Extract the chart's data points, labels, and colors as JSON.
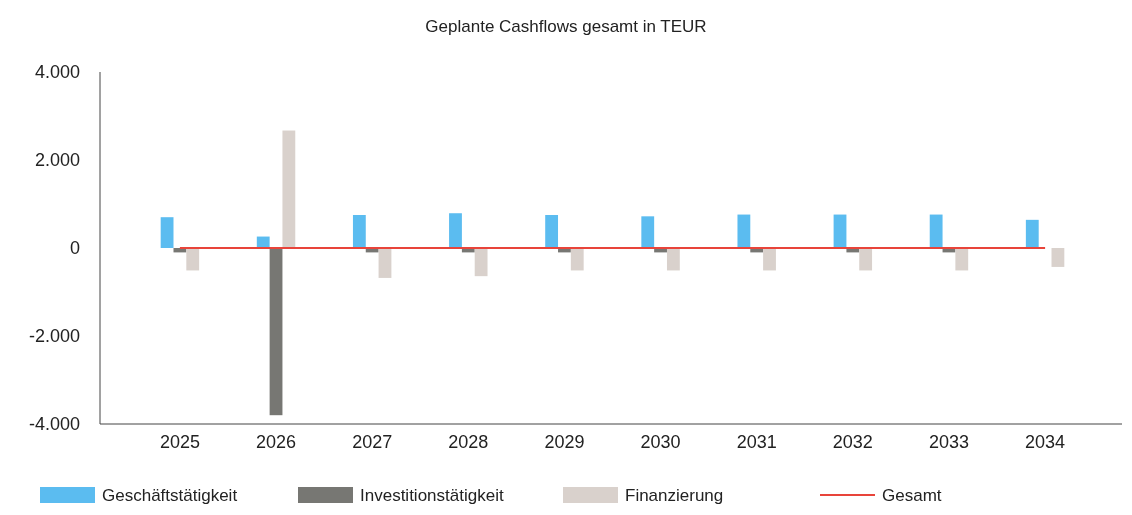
{
  "chart_data": {
    "type": "bar",
    "title": "Geplante Cashflows gesamt in TEUR",
    "categories": [
      "2025",
      "2026",
      "2027",
      "2028",
      "2029",
      "2030",
      "2031",
      "2032",
      "2033",
      "2034"
    ],
    "series": [
      {
        "name": "Geschäftstätigkeit",
        "color": "#5bbcf0",
        "values": [
          700,
          260,
          750,
          790,
          750,
          720,
          760,
          760,
          760,
          640
        ]
      },
      {
        "name": "Investitionstätigkeit",
        "color": "#777773",
        "values": [
          -100,
          -3800,
          -100,
          -100,
          -100,
          -100,
          -100,
          -100,
          -100,
          0
        ]
      },
      {
        "name": "Finanzierung",
        "color": "#d9d1cc",
        "values": [
          -510,
          2670,
          -680,
          -640,
          -510,
          -510,
          -510,
          -510,
          -510,
          -430
        ]
      },
      {
        "name": "Gesamt",
        "type": "line",
        "color": "#e8443a",
        "values": [
          0,
          0,
          0,
          0,
          0,
          0,
          0,
          0,
          0,
          0
        ]
      }
    ],
    "ylim": [
      -4000,
      4000
    ],
    "yticks": [
      {
        "value": 4000,
        "label": "4.000"
      },
      {
        "value": 2000,
        "label": "2.000"
      },
      0,
      {
        "value": -2000,
        "label": "-2.000"
      },
      {
        "value": -4000,
        "label": "-4.000"
      }
    ],
    "grid": false,
    "legend": "bottom"
  }
}
